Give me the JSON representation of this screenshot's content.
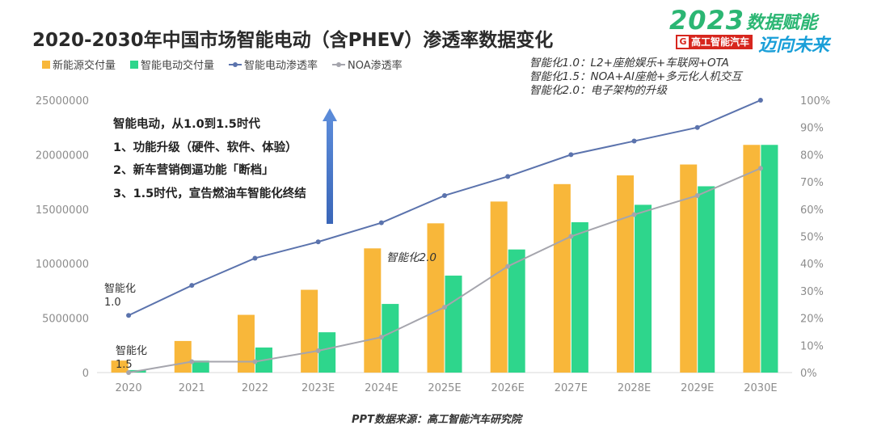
{
  "colors": {
    "ne_delivery": "#f8b73a",
    "smart_delivery": "#2ed68c",
    "smart_rate": "#5b73ad",
    "noa_rate": "#a5a5ad",
    "arrow": "#4472c4",
    "brand_green": "#2bb673",
    "brand_blue": "#1a9fd8",
    "brand_red": "#d7261e"
  },
  "brand": {
    "year": "2023",
    "slogan_line1": "数据赋能",
    "slogan_line2": "迈向未来",
    "logo_mark": "G",
    "logo_text": "高工智能汽车"
  },
  "notes": [
    "智能化1.0：L2+座舱娱乐+车联网+OTA",
    "智能化1.5：NOA+AI座舱+多元化人机交互",
    "智能化2.0：电子架构的升级"
  ],
  "annotation": {
    "heading": "智能电动，从1.0到1.5时代",
    "items": [
      "1、功能升级（硬件、软件、体验）",
      "2、新车营销倒逼功能「断档」",
      "3、1.5时代，宣告燃油车智能化终结"
    ]
  },
  "chart_labels": {
    "stage_1_0_line1": "智能化",
    "stage_1_0_line2": "1.0",
    "stage_1_5_line1": "智能化",
    "stage_1_5_line2": "1.5",
    "stage_2_0": "智能化2.0"
  },
  "source": "PPT数据来源：高工智能汽车研究院",
  "chart_data": {
    "type": "bar",
    "title": "2020-2030年中国市场智能电动（含PHEV）渗透率数据变化",
    "categories": [
      "2020",
      "2021",
      "2022",
      "2023E",
      "2024E",
      "2025E",
      "2026E",
      "2027E",
      "2028E",
      "2029E",
      "2030E"
    ],
    "series": [
      {
        "name": "新能源交付量",
        "kind": "bar",
        "axis": "left",
        "values": [
          1100000,
          2900000,
          5300000,
          7600000,
          11400000,
          13700000,
          15700000,
          17300000,
          18100000,
          19100000,
          20900000
        ]
      },
      {
        "name": "智能电动交付量",
        "kind": "bar",
        "axis": "left",
        "values": [
          230000,
          1100000,
          2300000,
          3700000,
          6300000,
          8900000,
          11300000,
          13800000,
          15400000,
          17100000,
          20900000
        ]
      },
      {
        "name": "智能电动渗透率",
        "kind": "line",
        "axis": "right",
        "values": [
          0.21,
          0.32,
          0.42,
          0.48,
          0.55,
          0.65,
          0.72,
          0.8,
          0.85,
          0.9,
          1.0
        ]
      },
      {
        "name": "NOA渗透率",
        "kind": "line",
        "axis": "right",
        "values": [
          0.0,
          0.04,
          0.04,
          0.08,
          0.13,
          0.24,
          0.39,
          0.5,
          0.58,
          0.65,
          0.75
        ]
      }
    ],
    "y_left": {
      "min": 0,
      "max": 25000000,
      "ticks": [
        "0",
        "5000000",
        "10000000",
        "15000000",
        "20000000",
        "25000000"
      ]
    },
    "y_right": {
      "min": 0,
      "max": 1,
      "ticks": [
        "0%",
        "10%",
        "20%",
        "30%",
        "40%",
        "50%",
        "60%",
        "70%",
        "80%",
        "90%",
        "100%"
      ]
    },
    "grid": false,
    "legend": "top-left"
  }
}
